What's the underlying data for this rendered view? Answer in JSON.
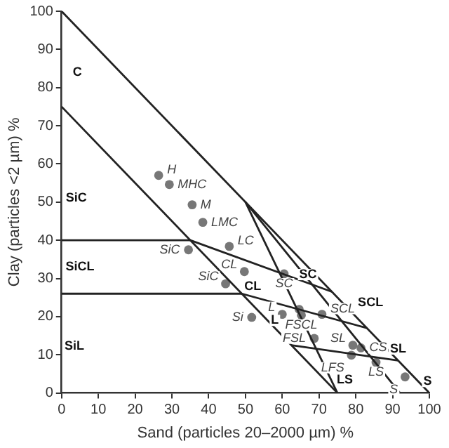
{
  "chart_data": {
    "type": "scatter",
    "xlabel": "Sand (particles 20–2000 µm) %",
    "ylabel": "Clay (particles <2 µm) %",
    "xlim": [
      0,
      100
    ],
    "ylim": [
      0,
      100
    ],
    "xticks": [
      0,
      10,
      20,
      30,
      40,
      50,
      60,
      70,
      80,
      90,
      100
    ],
    "yticks": [
      0,
      10,
      20,
      30,
      40,
      50,
      60,
      70,
      80,
      90,
      100
    ],
    "grid": false,
    "legend": false,
    "marker": "circle",
    "series": [
      {
        "type": "line",
        "marker": "none",
        "color": "#222222",
        "x": [
          0,
          100
        ],
        "values": [
          100,
          0
        ]
      },
      {
        "type": "line",
        "marker": "none",
        "color": "#222222",
        "x": [
          0,
          75
        ],
        "values": [
          75,
          0
        ]
      },
      {
        "type": "line",
        "marker": "none",
        "color": "#222222",
        "x": [
          50,
          75
        ],
        "values": [
          50,
          0
        ]
      },
      {
        "type": "line",
        "marker": "none",
        "color": "#222222",
        "x": [
          50,
          92
        ],
        "values": [
          50,
          0
        ]
      },
      {
        "type": "line",
        "marker": "none",
        "color": "#222222",
        "x": [
          0,
          35,
          73.5
        ],
        "values": [
          40,
          40,
          26.5
        ]
      },
      {
        "type": "line",
        "marker": "none",
        "color": "#222222",
        "x": [
          0,
          49,
          83
        ],
        "values": [
          26,
          26,
          17
        ]
      },
      {
        "type": "line",
        "marker": "none",
        "color": "#222222",
        "x": [
          62.5,
          91.5
        ],
        "values": [
          12.5,
          8.5
        ]
      },
      {
        "type": "scatter",
        "color": "#777777",
        "x": [
          26.4,
          29.3,
          35.5,
          38.4,
          45.6,
          34.5,
          49.7,
          44.6,
          60.5,
          60,
          64.6,
          65.2,
          70.8,
          51.7,
          68.7,
          79.2,
          81.4,
          78.8,
          85.5,
          93.4
        ],
        "values": [
          57,
          54.6,
          49.3,
          44.7,
          38.4,
          37.5,
          31.8,
          28.6,
          31.2,
          20.6,
          21.9,
          20.4,
          20.6,
          19.8,
          14.3,
          12.5,
          11.8,
          9.9,
          8,
          4.2
        ],
        "value_labels": [
          "H",
          "MHC",
          "M",
          "LMC",
          "LC",
          "SiC",
          "CL",
          "SiC",
          "SC",
          "L",
          null,
          "FSCL",
          "SCL",
          "Si",
          "FSL",
          "SL",
          "CS",
          "LFS",
          "LS",
          "S"
        ]
      }
    ],
    "annotations": [
      "C",
      "SiC",
      "SiCL",
      "SiL",
      "CL",
      "SC",
      "SCL",
      "L",
      "SL",
      "LS",
      "S"
    ]
  }
}
